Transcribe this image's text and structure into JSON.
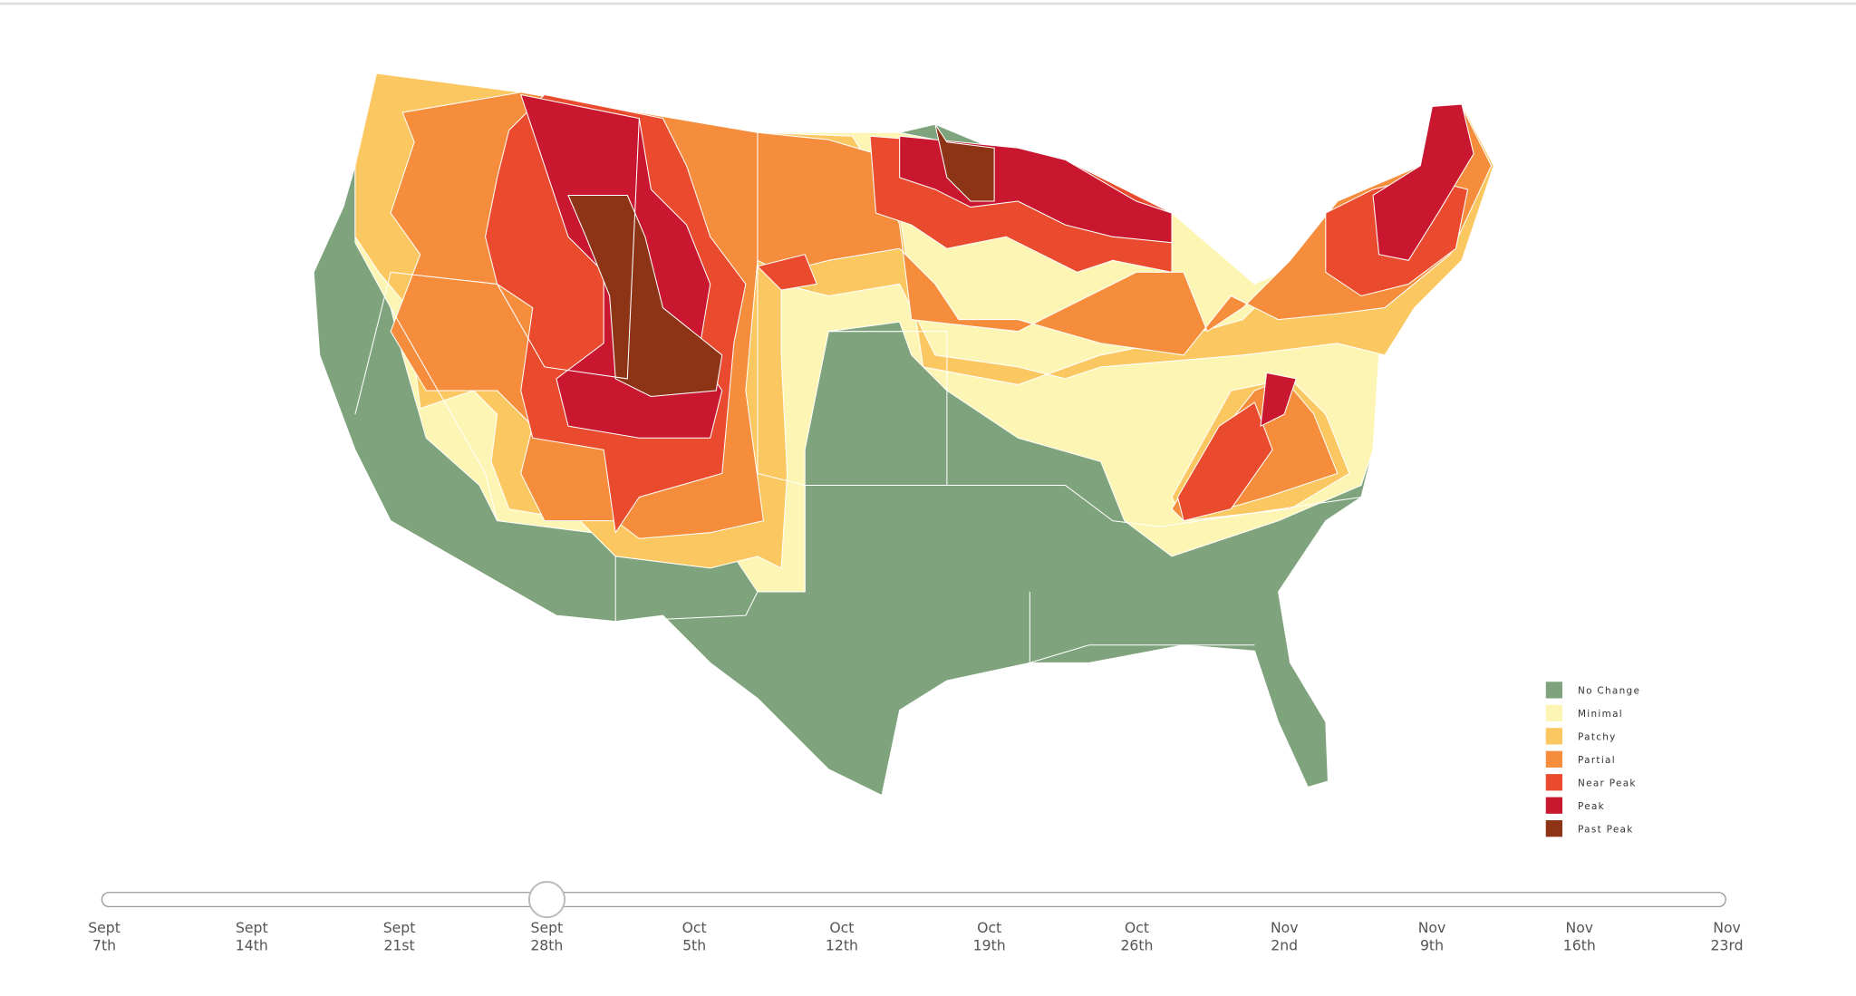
{
  "legend": [
    {
      "label": "No Change",
      "color": "#7fa37c"
    },
    {
      "label": "Minimal",
      "color": "#fdf5b3"
    },
    {
      "label": "Patchy",
      "color": "#fbc760"
    },
    {
      "label": "Partial",
      "color": "#f58d3d"
    },
    {
      "label": "Near Peak",
      "color": "#ea4a2d"
    },
    {
      "label": "Peak",
      "color": "#c8172f"
    },
    {
      "label": "Past Peak",
      "color": "#8e3416"
    }
  ],
  "timeline": [
    {
      "month": "Sept",
      "day": "7th"
    },
    {
      "month": "Sept",
      "day": "14th"
    },
    {
      "month": "Sept",
      "day": "21st"
    },
    {
      "month": "Sept",
      "day": "28th"
    },
    {
      "month": "Oct",
      "day": "5th"
    },
    {
      "month": "Oct",
      "day": "12th"
    },
    {
      "month": "Oct",
      "day": "19th"
    },
    {
      "month": "Oct",
      "day": "26th"
    },
    {
      "month": "Nov",
      "day": "2nd"
    },
    {
      "month": "Nov",
      "day": "9th"
    },
    {
      "month": "Nov",
      "day": "16th"
    },
    {
      "month": "Nov",
      "day": "23rd"
    }
  ]
}
